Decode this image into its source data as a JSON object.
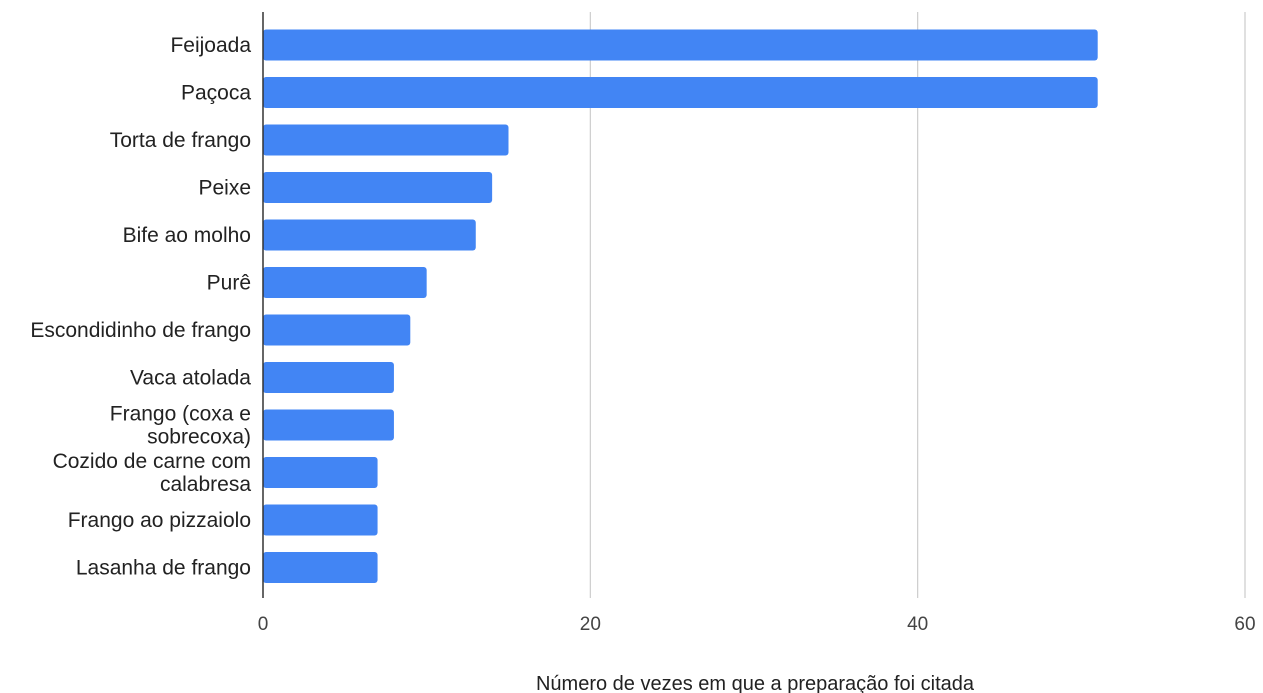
{
  "chart_data": {
    "type": "bar",
    "orientation": "horizontal",
    "categories": [
      "Feijoada",
      "Paçoca",
      "Torta de frango",
      "Peixe",
      "Bife ao molho",
      "Purê",
      "Escondidinho de frango",
      "Vaca atolada",
      "Frango (coxa e sobrecoxa)",
      "Cozido de carne com calabresa",
      "Frango ao pizzaiolo",
      "Lasanha de frango"
    ],
    "category_lines": [
      [
        "Feijoada"
      ],
      [
        "Paçoca"
      ],
      [
        "Torta de frango"
      ],
      [
        "Peixe"
      ],
      [
        "Bife ao molho"
      ],
      [
        "Purê"
      ],
      [
        "Escondidinho de frango"
      ],
      [
        "Vaca atolada"
      ],
      [
        "Frango (coxa e",
        "sobrecoxa)"
      ],
      [
        "Cozido de carne com",
        "calabresa"
      ],
      [
        "Frango ao pizzaiolo"
      ],
      [
        "Lasanha de frango"
      ]
    ],
    "values": [
      51,
      51,
      15,
      14,
      13,
      10,
      9,
      8,
      8,
      7,
      7,
      7
    ],
    "xlabel": "Número de vezes em que a preparação foi citada",
    "ylabel": "",
    "xlim": [
      0,
      60
    ],
    "xticks": [
      "0",
      "20",
      "40",
      "60"
    ],
    "grid": true,
    "bar_color": "#4285f4",
    "grid_color": "#cccccc",
    "axis_color": "#333333"
  }
}
